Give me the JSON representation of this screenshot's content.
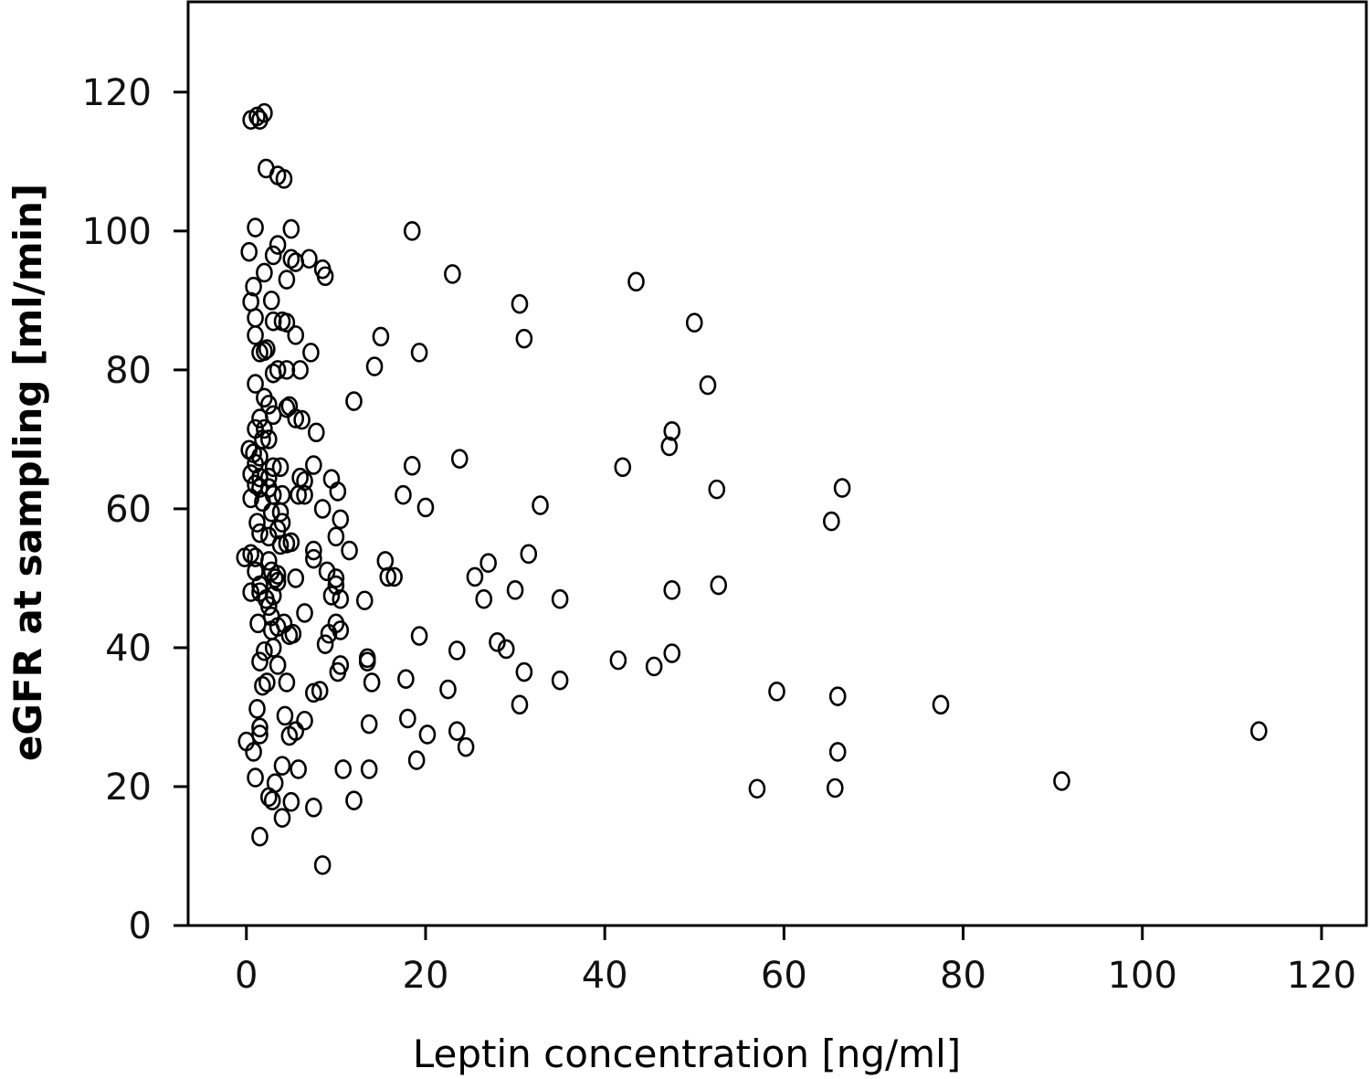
{
  "chart_data": {
    "type": "scatter",
    "xlabel": "Leptin concentration [ng/ml]",
    "ylabel": "eGFR at sampling [ml/min]",
    "xlim": [
      -6.5,
      125
    ],
    "ylim": [
      0,
      133
    ],
    "xticks": [
      0,
      20,
      40,
      60,
      80,
      100,
      120
    ],
    "yticks": [
      0,
      20,
      40,
      60,
      80,
      100,
      120
    ],
    "grid": false,
    "marker": "open-circle",
    "points": [
      [
        0.5,
        116
      ],
      [
        1.5,
        116
      ],
      [
        2,
        117
      ],
      [
        1.2,
        116.5
      ],
      [
        2.2,
        109
      ],
      [
        3.5,
        108
      ],
      [
        4.2,
        107.5
      ],
      [
        1,
        100.5
      ],
      [
        5,
        100.3
      ],
      [
        18.5,
        100
      ],
      [
        0.3,
        97
      ],
      [
        3,
        96.5
      ],
      [
        3.5,
        98
      ],
      [
        5,
        96
      ],
      [
        7,
        96
      ],
      [
        5.5,
        95.5
      ],
      [
        8.5,
        94.5
      ],
      [
        2,
        94
      ],
      [
        8.8,
        93.5
      ],
      [
        4.5,
        93
      ],
      [
        23,
        93.8
      ],
      [
        43.5,
        92.7
      ],
      [
        0.8,
        92
      ],
      [
        0.5,
        89.8
      ],
      [
        2.8,
        90
      ],
      [
        30.5,
        89.5
      ],
      [
        1,
        87.5
      ],
      [
        3,
        87
      ],
      [
        4,
        87
      ],
      [
        4.5,
        86.8
      ],
      [
        50,
        86.8
      ],
      [
        1,
        85
      ],
      [
        5.5,
        85
      ],
      [
        15,
        84.8
      ],
      [
        31,
        84.5
      ],
      [
        1.5,
        82.5
      ],
      [
        2.3,
        83
      ],
      [
        2,
        82.7
      ],
      [
        7.2,
        82.5
      ],
      [
        19.3,
        82.5
      ],
      [
        3.5,
        80
      ],
      [
        4.5,
        80
      ],
      [
        6,
        80
      ],
      [
        14.3,
        80.5
      ],
      [
        3,
        79.5
      ],
      [
        1,
        78
      ],
      [
        51.5,
        77.8
      ],
      [
        2,
        76
      ],
      [
        12,
        75.5
      ],
      [
        2.5,
        75
      ],
      [
        4.5,
        74.5
      ],
      [
        4.8,
        74.8
      ],
      [
        1.5,
        73
      ],
      [
        3,
        73.5
      ],
      [
        5.5,
        73
      ],
      [
        6.2,
        72.8
      ],
      [
        1,
        71.5
      ],
      [
        2,
        71.5
      ],
      [
        7.8,
        71
      ],
      [
        47.5,
        71.2
      ],
      [
        1.8,
        70
      ],
      [
        2.5,
        70
      ],
      [
        47.2,
        69
      ],
      [
        0.3,
        68.5
      ],
      [
        0.8,
        68
      ],
      [
        1.5,
        67.5
      ],
      [
        1,
        66.5
      ],
      [
        3,
        66
      ],
      [
        3.8,
        66
      ],
      [
        7.5,
        66.3
      ],
      [
        18.5,
        66.2
      ],
      [
        23.8,
        67.2
      ],
      [
        42,
        66
      ],
      [
        0.5,
        65
      ],
      [
        1.5,
        64.5
      ],
      [
        2.5,
        64.5
      ],
      [
        6,
        64.5
      ],
      [
        6.5,
        64
      ],
      [
        9.5,
        64.3
      ],
      [
        1,
        63.5
      ],
      [
        1.5,
        63
      ],
      [
        2.5,
        63
      ],
      [
        3,
        62
      ],
      [
        4,
        62
      ],
      [
        5.8,
        62
      ],
      [
        6.5,
        62
      ],
      [
        10.2,
        62.5
      ],
      [
        17.5,
        62
      ],
      [
        52.5,
        62.8
      ],
      [
        66.5,
        63
      ],
      [
        0.5,
        61.5
      ],
      [
        1.8,
        61
      ],
      [
        20,
        60.2
      ],
      [
        32.8,
        60.5
      ],
      [
        8.5,
        60
      ],
      [
        2.8,
        59.5
      ],
      [
        3.8,
        59.5
      ],
      [
        1.2,
        58
      ],
      [
        4,
        58
      ],
      [
        10.5,
        58.5
      ],
      [
        65.3,
        58.2
      ],
      [
        3.5,
        57
      ],
      [
        1.5,
        56.5
      ],
      [
        10,
        56
      ],
      [
        2.5,
        56
      ],
      [
        4.5,
        55
      ],
      [
        5,
        55.2
      ],
      [
        3.8,
        54.8
      ],
      [
        7.5,
        54
      ],
      [
        11.5,
        54
      ],
      [
        31.5,
        53.5
      ],
      [
        -0.2,
        53
      ],
      [
        1,
        53
      ],
      [
        0.5,
        53.5
      ],
      [
        2.5,
        52.5
      ],
      [
        7.5,
        52.8
      ],
      [
        15.5,
        52.5
      ],
      [
        27,
        52.2
      ],
      [
        1,
        51
      ],
      [
        2.8,
        51
      ],
      [
        3.5,
        50.5
      ],
      [
        3.2,
        50
      ],
      [
        5.5,
        50
      ],
      [
        9,
        51
      ],
      [
        10,
        50
      ],
      [
        15.8,
        50.2
      ],
      [
        16.5,
        50.2
      ],
      [
        25.5,
        50.2
      ],
      [
        1.5,
        49
      ],
      [
        3.5,
        49.5
      ],
      [
        10,
        49
      ],
      [
        52.7,
        49
      ],
      [
        0.5,
        48
      ],
      [
        1.5,
        48
      ],
      [
        2.2,
        47
      ],
      [
        3,
        47.5
      ],
      [
        9.5,
        47.5
      ],
      [
        10.5,
        47
      ],
      [
        13.2,
        46.8
      ],
      [
        26.5,
        47
      ],
      [
        30,
        48.3
      ],
      [
        35,
        47
      ],
      [
        47.5,
        48.3
      ],
      [
        2.5,
        46
      ],
      [
        6.5,
        45
      ],
      [
        2.8,
        44.5
      ],
      [
        1.3,
        43.5
      ],
      [
        3.5,
        43
      ],
      [
        4.2,
        43.5
      ],
      [
        10,
        43.5
      ],
      [
        10.5,
        42.5
      ],
      [
        2.8,
        42.5
      ],
      [
        4.8,
        41.8
      ],
      [
        5.2,
        42
      ],
      [
        9.2,
        42
      ],
      [
        19.3,
        41.7
      ],
      [
        8.8,
        40.5
      ],
      [
        3,
        40
      ],
      [
        2,
        39.5
      ],
      [
        28,
        40.8
      ],
      [
        29,
        39.8
      ],
      [
        23.5,
        39.6
      ],
      [
        13.5,
        38.5
      ],
      [
        1.5,
        38
      ],
      [
        3.5,
        37.5
      ],
      [
        10.5,
        37.5
      ],
      [
        13.5,
        38
      ],
      [
        41.5,
        38.2
      ],
      [
        47.5,
        39.2
      ],
      [
        10.2,
        36.5
      ],
      [
        31,
        36.5
      ],
      [
        45.5,
        37.3
      ],
      [
        1.8,
        34.5
      ],
      [
        2.3,
        35
      ],
      [
        4.5,
        35
      ],
      [
        14,
        35
      ],
      [
        17.8,
        35.5
      ],
      [
        35,
        35.3
      ],
      [
        22.5,
        34
      ],
      [
        59.2,
        33.7
      ],
      [
        7.5,
        33.5
      ],
      [
        8.2,
        33.8
      ],
      [
        66,
        33
      ],
      [
        1.2,
        31.2
      ],
      [
        30.5,
        31.8
      ],
      [
        77.5,
        31.8
      ],
      [
        4.3,
        30.2
      ],
      [
        6.5,
        29.5
      ],
      [
        13.7,
        29
      ],
      [
        18,
        29.8
      ],
      [
        1.5,
        28.5
      ],
      [
        5.5,
        28
      ],
      [
        4.8,
        27.3
      ],
      [
        1.5,
        27.5
      ],
      [
        20.2,
        27.5
      ],
      [
        23.5,
        28
      ],
      [
        113,
        28
      ],
      [
        0,
        26.5
      ],
      [
        0.8,
        25
      ],
      [
        24.5,
        25.7
      ],
      [
        66,
        25
      ],
      [
        4,
        23
      ],
      [
        5.8,
        22.5
      ],
      [
        10.8,
        22.5
      ],
      [
        13.7,
        22.5
      ],
      [
        19,
        23.8
      ],
      [
        1,
        21.3
      ],
      [
        3.2,
        20.5
      ],
      [
        91,
        20.8
      ],
      [
        57,
        19.7
      ],
      [
        65.7,
        19.8
      ],
      [
        2.5,
        18.5
      ],
      [
        2.9,
        18
      ],
      [
        5,
        17.8
      ],
      [
        12,
        18
      ],
      [
        7.5,
        17
      ],
      [
        4,
        15.5
      ],
      [
        1.5,
        12.8
      ],
      [
        8.5,
        8.7
      ]
    ]
  }
}
